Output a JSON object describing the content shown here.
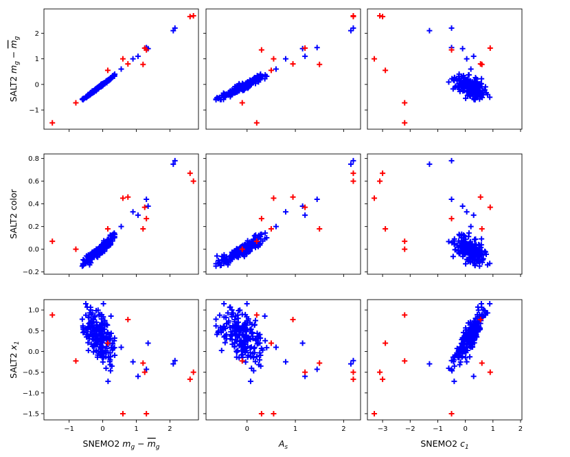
{
  "chart_data": {
    "type": "scatter",
    "layout": "3x3 grid, shared x per column, shared y per row",
    "marker": "+",
    "colors": {
      "inlier": "#0000ff",
      "outlier": "#ff0000"
    },
    "columns": [
      {
        "xlabel": "SNEMO2 m_g − m̄_g",
        "xlabel_main": "SNEMO2 ",
        "xlabel_sym": "m",
        "xlabel_sub": "g",
        "xlabel_minus": " − ",
        "xlim": [
          -1.75,
          2.85
        ],
        "xticks": [
          -1,
          0,
          1,
          2
        ],
        "xtick_labels": [
          "−1",
          "0",
          "1",
          "2"
        ]
      },
      {
        "xlabel": "A_s",
        "xlabel_main": "",
        "xlabel_sym": "A",
        "xlabel_sub": "s",
        "xlim": [
          -0.85,
          2.35
        ],
        "xticks": [
          0,
          1,
          2
        ],
        "xtick_labels": [
          "0",
          "1",
          "2"
        ]
      },
      {
        "xlabel": "SNEMO2 c_1",
        "xlabel_main": "SNEMO2 ",
        "xlabel_sym": "c",
        "xlabel_sub": "1",
        "xlim": [
          -3.55,
          2.05
        ],
        "xticks": [
          -3,
          -2,
          -1,
          0,
          1,
          2
        ],
        "xtick_labels": [
          "−3",
          "−2",
          "−1",
          "0",
          "1",
          "2"
        ]
      }
    ],
    "rows": [
      {
        "ylabel": "SALT2 m_g − m̄_g",
        "ylabel_main": "SALT2 ",
        "ylabel_sym": "m",
        "ylabel_sub": "g",
        "ylabel_minus": " − ",
        "ylim": [
          -1.75,
          2.95
        ],
        "yticks": [
          -1,
          0,
          1,
          2
        ],
        "ytick_labels": [
          "−1",
          "0",
          "1",
          "2"
        ]
      },
      {
        "ylabel": "SALT2 color",
        "ylabel_main": "SALT2 color",
        "ylim": [
          -0.22,
          0.84
        ],
        "yticks": [
          -0.2,
          0.0,
          0.2,
          0.4,
          0.6,
          0.8
        ],
        "ytick_labels": [
          "−0.2",
          "0.0",
          "0.2",
          "0.4",
          "0.6",
          "0.8"
        ]
      },
      {
        "ylabel": "SALT2 x_1",
        "ylabel_main": "SALT2 ",
        "ylabel_sym": "x",
        "ylabel_sub": "1",
        "ylim": [
          -1.65,
          1.25
        ],
        "yticks": [
          -1.5,
          -1.0,
          -0.5,
          0.0,
          0.5,
          1.0
        ],
        "ytick_labels": [
          "−1.5",
          "−1.0",
          "−0.5",
          "0.0",
          "0.5",
          "1.0"
        ]
      }
    ],
    "supernovae": {
      "fields": [
        "mg_snemo",
        "As",
        "c1",
        "mg_salt",
        "color",
        "x1"
      ],
      "outliers": [
        [
          -1.5,
          0.2,
          -2.2,
          -1.5,
          0.07,
          0.88
        ],
        [
          -0.8,
          -0.1,
          -2.2,
          -0.72,
          0.0,
          -0.23
        ],
        [
          0.75,
          0.95,
          0.55,
          0.8,
          0.46,
          0.77
        ],
        [
          1.3,
          0.3,
          -0.5,
          1.35,
          0.27,
          -1.5
        ],
        [
          1.25,
          1.2,
          0.9,
          1.42,
          0.37,
          -0.5
        ],
        [
          1.2,
          1.5,
          0.6,
          0.78,
          0.18,
          -0.28
        ],
        [
          2.6,
          2.2,
          -3.0,
          2.65,
          0.67,
          -0.67
        ],
        [
          2.7,
          2.2,
          -3.1,
          2.68,
          0.6,
          -0.5
        ],
        [
          0.6,
          0.55,
          -3.3,
          1.0,
          0.45,
          -1.5
        ],
        [
          0.15,
          0.5,
          -2.9,
          0.55,
          0.18,
          0.2
        ]
      ],
      "inliers": [
        [
          2.1,
          2.15,
          -1.3,
          2.1,
          0.75,
          -0.3
        ],
        [
          2.15,
          2.2,
          -0.5,
          2.2,
          0.78,
          -0.22
        ],
        [
          1.3,
          1.45,
          -0.5,
          1.44,
          0.44,
          -0.43
        ],
        [
          1.35,
          1.15,
          -0.1,
          1.4,
          0.38,
          0.2
        ],
        [
          1.05,
          1.2,
          0.3,
          1.1,
          0.3,
          -0.6
        ],
        [
          0.9,
          0.8,
          0.05,
          1.0,
          0.33,
          -0.25
        ],
        [
          0.55,
          0.6,
          0.2,
          0.6,
          0.2,
          0.1
        ]
      ]
    }
  }
}
